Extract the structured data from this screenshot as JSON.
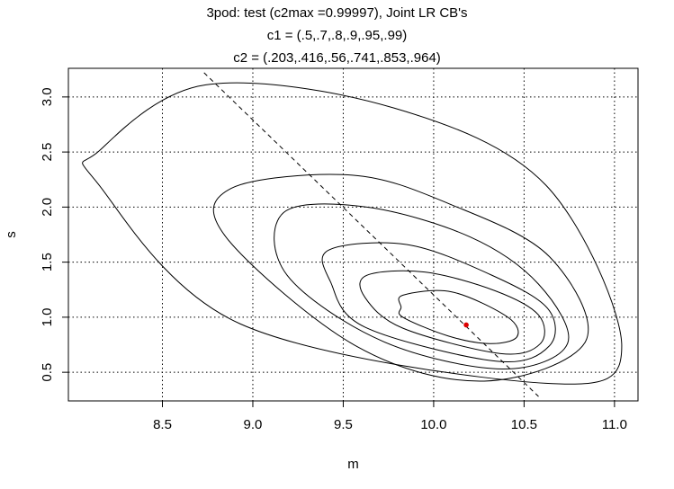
{
  "chart_data": {
    "type": "line",
    "title_lines": [
      "3pod: test (c2max =0.99997), Joint LR CB's",
      "c1 = (.5,.7,.8,.9,.95,.99)",
      "c2 = (.203,.416,.56,.741,.853,.964)"
    ],
    "xlabel": "m",
    "ylabel": "s",
    "xlim": [
      7.98,
      11.13
    ],
    "ylim": [
      0.24,
      3.26
    ],
    "x_ticks": [
      "8.5",
      "9.0",
      "9.5",
      "10.0",
      "10.5",
      "11.0"
    ],
    "x_tick_values": [
      8.5,
      9.0,
      9.5,
      10.0,
      10.5,
      11.0
    ],
    "y_ticks": [
      "0.5",
      "1.0",
      "1.5",
      "2.0",
      "2.5",
      "3.0"
    ],
    "y_tick_values": [
      0.5,
      1.0,
      1.5,
      2.0,
      2.5,
      3.0
    ],
    "grid": true,
    "center_point": {
      "x": 10.18,
      "y": 0.93,
      "color": "#dd0000"
    },
    "dashed_line": {
      "x": [
        8.73,
        10.58
      ],
      "y": [
        3.22,
        0.28
      ]
    },
    "contours": [
      {
        "level": "0.203",
        "x": [
          9.83,
          10.1,
          10.41,
          10.46,
          10.31,
          10.08,
          9.83,
          9.82
        ],
        "y": [
          1.2,
          1.23,
          1.0,
          0.82,
          0.76,
          0.83,
          1.0,
          1.09
        ]
      },
      {
        "level": "0.416",
        "x": [
          9.63,
          9.95,
          10.34,
          10.58,
          10.59,
          10.37,
          9.83,
          9.62
        ],
        "y": [
          1.38,
          1.41,
          1.24,
          1.02,
          0.76,
          0.67,
          0.9,
          1.18
        ]
      },
      {
        "level": "0.56",
        "x": [
          9.42,
          9.85,
          10.31,
          10.63,
          10.64,
          10.35,
          9.62,
          9.43
        ],
        "y": [
          1.61,
          1.66,
          1.39,
          1.08,
          0.74,
          0.6,
          0.91,
          1.32
        ]
      },
      {
        "level": "0.741",
        "x": [
          9.17,
          9.63,
          10.2,
          10.58,
          10.74,
          10.38,
          9.72,
          9.19
        ],
        "y": [
          1.95,
          2.0,
          1.73,
          1.3,
          0.76,
          0.53,
          0.78,
          1.38
        ]
      },
      {
        "level": "0.853",
        "x": [
          8.88,
          9.55,
          10.1,
          10.64,
          10.84,
          10.28,
          9.58,
          8.86
        ],
        "y": [
          2.17,
          2.29,
          2.02,
          1.55,
          0.78,
          0.42,
          0.73,
          1.71
        ]
      },
      {
        "level": "0.964",
        "x": [
          8.15,
          8.74,
          9.78,
          10.62,
          11.04,
          10.62,
          8.93,
          8.14
        ],
        "y": [
          2.51,
          3.11,
          2.9,
          2.2,
          0.74,
          0.4,
          0.94,
          2.22
        ]
      }
    ]
  }
}
